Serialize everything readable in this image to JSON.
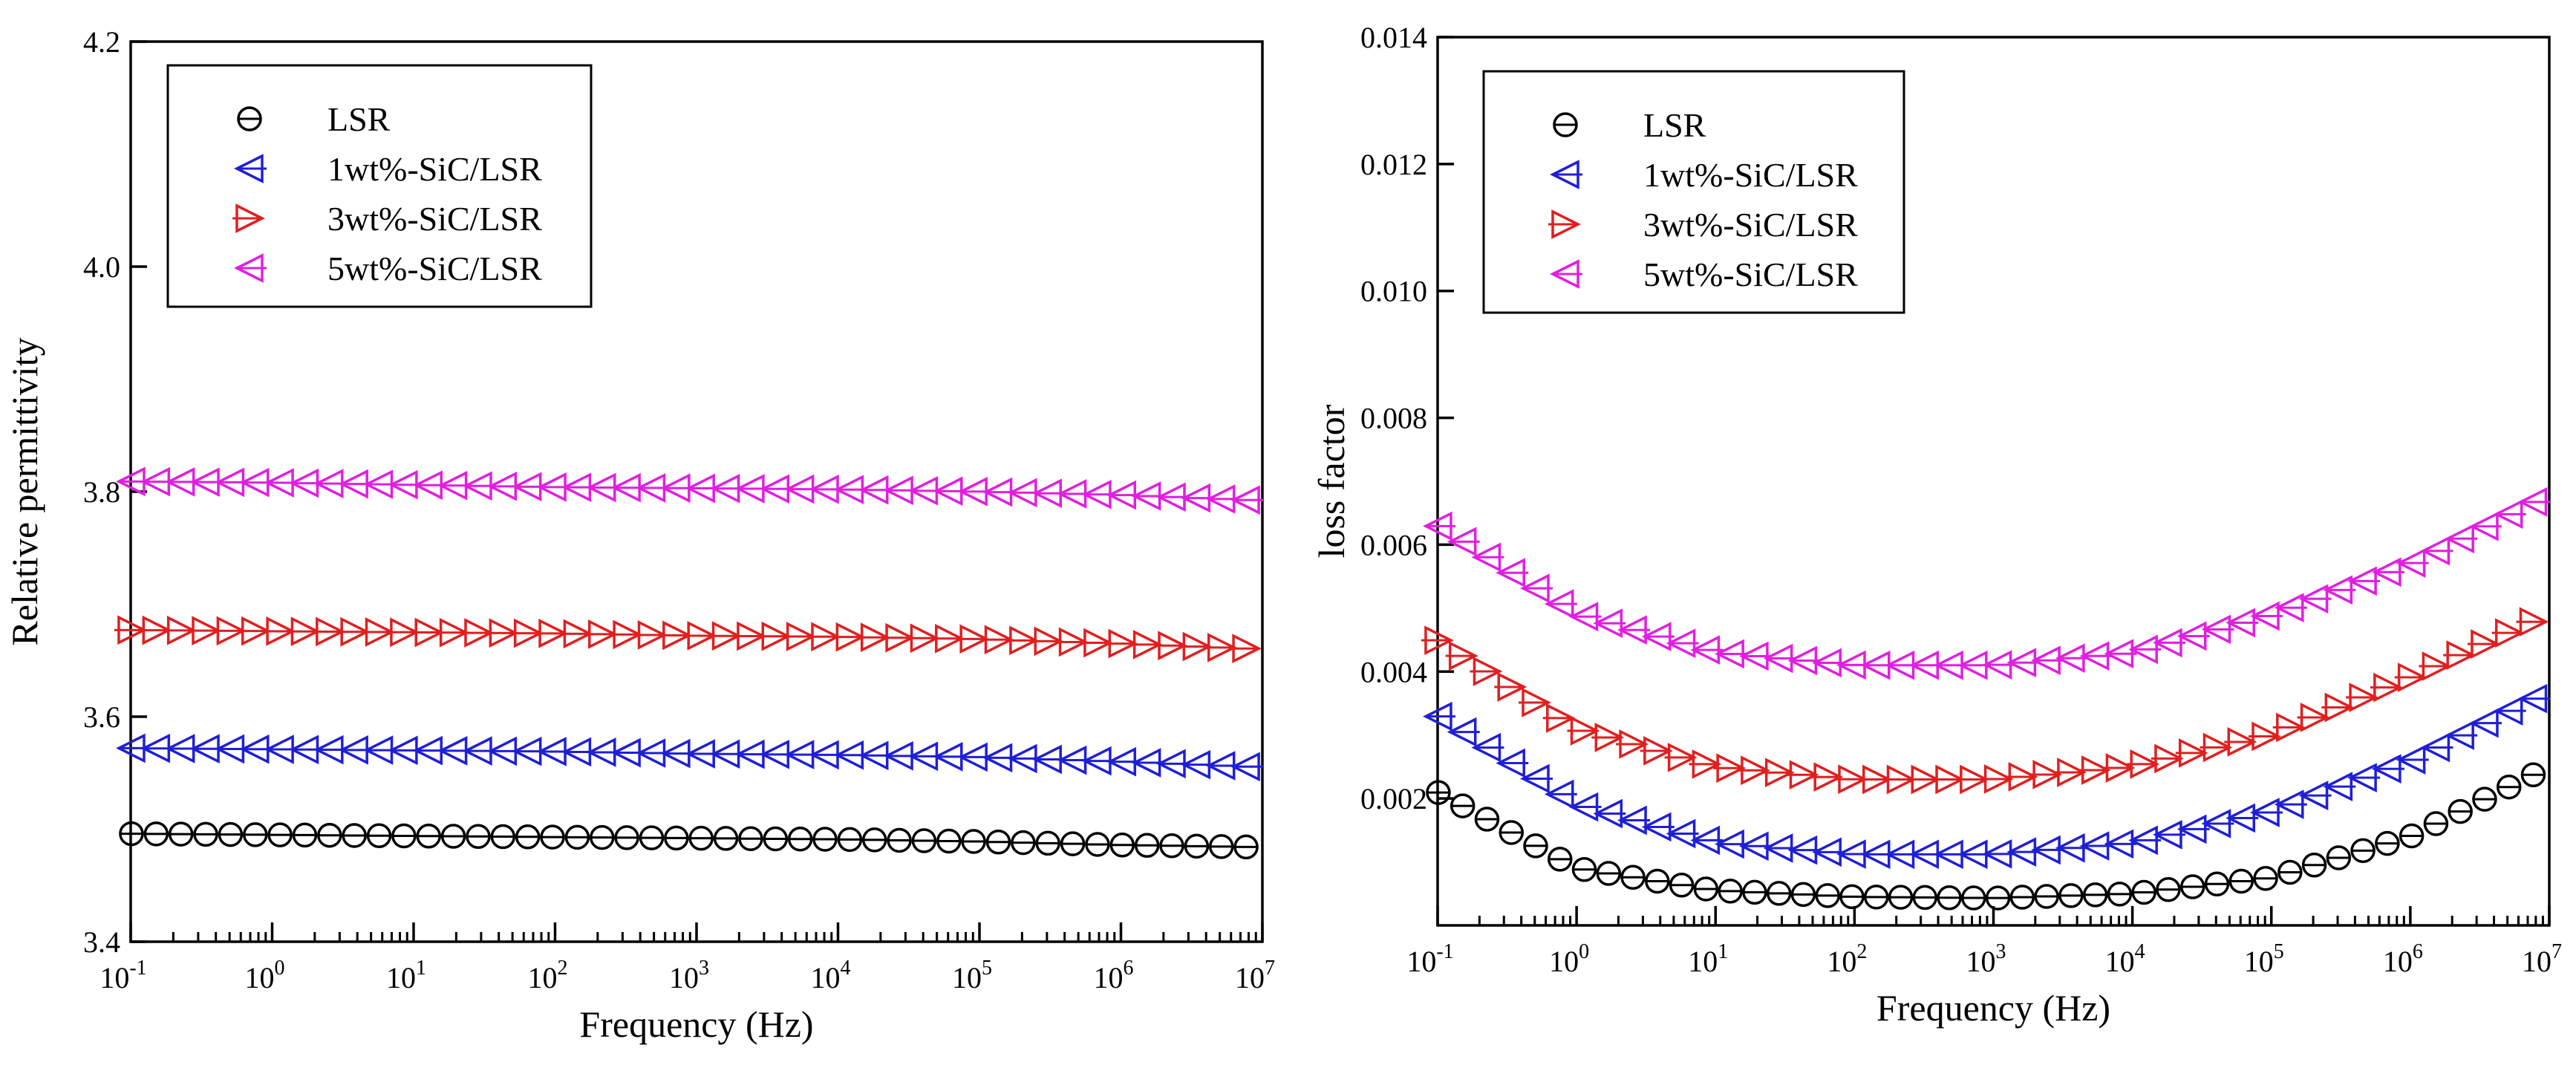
{
  "chart_data": [
    {
      "type": "scatter",
      "xscale": "log",
      "xlabel": "Frequency (Hz)",
      "ylabel": "Relative permittivity",
      "xlim": [
        0.1,
        10000000
      ],
      "ylim": [
        3.4,
        4.2
      ],
      "xticks": [
        {
          "base": "10",
          "exp": "-1"
        },
        {
          "base": "10",
          "exp": "0"
        },
        {
          "base": "10",
          "exp": "1"
        },
        {
          "base": "10",
          "exp": "2"
        },
        {
          "base": "10",
          "exp": "3"
        },
        {
          "base": "10",
          "exp": "4"
        },
        {
          "base": "10",
          "exp": "5"
        },
        {
          "base": "10",
          "exp": "6"
        },
        {
          "base": "10",
          "exp": "7"
        }
      ],
      "yticks": [
        "3.4",
        "3.6",
        "3.8",
        "4.0",
        "4.2"
      ],
      "legend_position": "top-left",
      "series": [
        {
          "name": "LSR",
          "color": "#000000",
          "marker": "circle",
          "x": [
            0.1,
            1,
            10,
            100,
            1000,
            10000,
            100000,
            1000000,
            10000000
          ],
          "y": [
            3.496,
            3.495,
            3.494,
            3.493,
            3.492,
            3.491,
            3.489,
            3.486,
            3.484
          ]
        },
        {
          "name": "1wt%-SiC/LSR",
          "color": "#1f1fd6",
          "marker": "triangle-left",
          "x": [
            0.1,
            1,
            10,
            100,
            1000,
            10000,
            100000,
            1000000,
            10000000
          ],
          "y": [
            3.572,
            3.571,
            3.57,
            3.569,
            3.567,
            3.566,
            3.564,
            3.56,
            3.555
          ]
        },
        {
          "name": "3wt%-SiC/LSR",
          "color": "#e01f1f",
          "marker": "triangle-right",
          "x": [
            0.1,
            1,
            10,
            100,
            1000,
            10000,
            100000,
            1000000,
            10000000
          ],
          "y": [
            3.677,
            3.676,
            3.675,
            3.674,
            3.672,
            3.671,
            3.669,
            3.665,
            3.66
          ]
        },
        {
          "name": "5wt%-SiC/LSR",
          "color": "#e01fe0",
          "marker": "triangle-left",
          "x": [
            0.1,
            1,
            10,
            100,
            1000,
            10000,
            100000,
            1000000,
            10000000
          ],
          "y": [
            3.809,
            3.808,
            3.806,
            3.804,
            3.803,
            3.802,
            3.8,
            3.797,
            3.792
          ]
        }
      ]
    },
    {
      "type": "scatter",
      "xscale": "log",
      "xlabel": "Frequency (Hz)",
      "ylabel": "loss factor",
      "xlim": [
        0.1,
        10000000
      ],
      "ylim": [
        0,
        0.014
      ],
      "xticks": [
        {
          "base": "10",
          "exp": "-1"
        },
        {
          "base": "10",
          "exp": "0"
        },
        {
          "base": "10",
          "exp": "1"
        },
        {
          "base": "10",
          "exp": "2"
        },
        {
          "base": "10",
          "exp": "3"
        },
        {
          "base": "10",
          "exp": "4"
        },
        {
          "base": "10",
          "exp": "5"
        },
        {
          "base": "10",
          "exp": "6"
        },
        {
          "base": "10",
          "exp": "7"
        }
      ],
      "yticks": [
        "0.002",
        "0.004",
        "0.006",
        "0.008",
        "0.010",
        "0.012",
        "0.014"
      ],
      "legend_position": "top-left",
      "series": [
        {
          "name": "LSR",
          "color": "#000000",
          "marker": "circle",
          "x": [
            0.1,
            1,
            10,
            100,
            1000,
            10000,
            100000,
            1000000,
            10000000
          ],
          "y": [
            0.0021,
            0.0009,
            0.00055,
            0.00045,
            0.00043,
            0.0005,
            0.00075,
            0.0014,
            0.0025
          ]
        },
        {
          "name": "1wt%-SiC/LSR",
          "color": "#1f1fd6",
          "marker": "triangle-left",
          "x": [
            0.1,
            1,
            10,
            100,
            1000,
            10000,
            100000,
            1000000,
            10000000
          ],
          "y": [
            0.0033,
            0.0019,
            0.0013,
            0.00112,
            0.00112,
            0.0013,
            0.0018,
            0.0026,
            0.0037
          ]
        },
        {
          "name": "3wt%-SiC/LSR",
          "color": "#e01f1f",
          "marker": "triangle-right",
          "x": [
            0.1,
            1,
            10,
            100,
            1000,
            10000,
            100000,
            1000000,
            10000000
          ],
          "y": [
            0.0045,
            0.0031,
            0.0025,
            0.0023,
            0.0023,
            0.0025,
            0.003,
            0.0039,
            0.0049
          ]
        },
        {
          "name": "5wt%-SiC/LSR",
          "color": "#e01fe0",
          "marker": "triangle-left",
          "x": [
            0.1,
            1,
            10,
            100,
            1000,
            10000,
            100000,
            1000000,
            10000000
          ],
          "y": [
            0.0063,
            0.0049,
            0.0043,
            0.0041,
            0.0041,
            0.0043,
            0.0049,
            0.0057,
            0.0068
          ]
        }
      ]
    }
  ]
}
